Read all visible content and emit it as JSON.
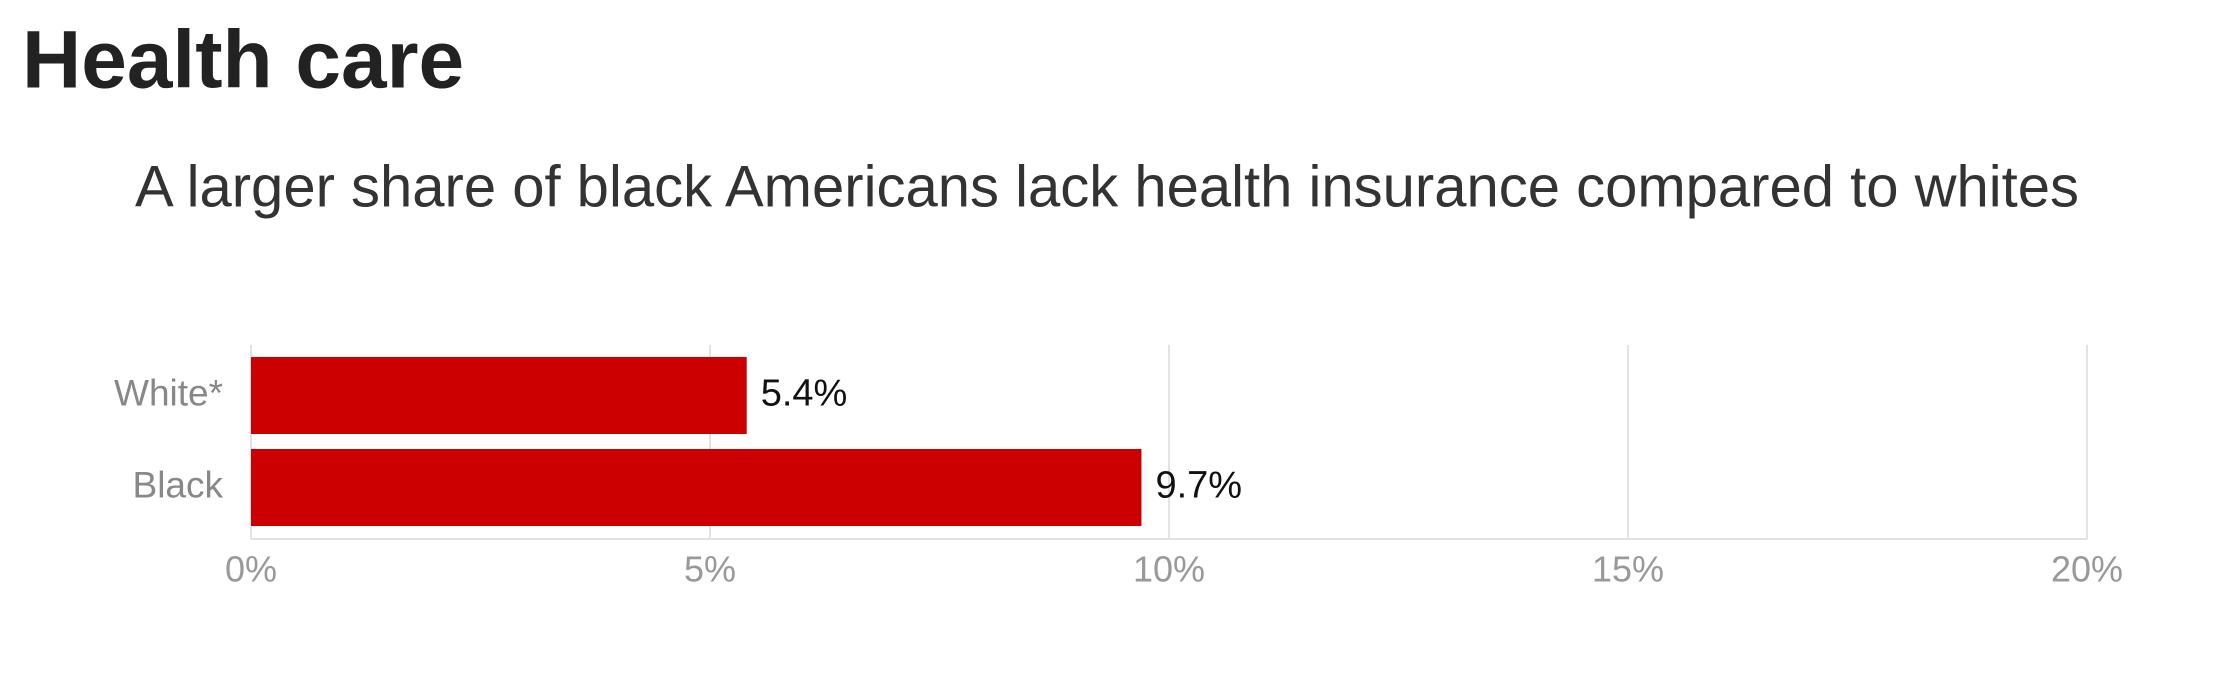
{
  "header": {
    "title": "Health care"
  },
  "chart_data": {
    "type": "bar",
    "orientation": "horizontal",
    "title": "A larger share of black Americans lack health insurance compared to whites",
    "categories": [
      "White*",
      "Black"
    ],
    "values": [
      5.4,
      9.7
    ],
    "value_labels": [
      "5.4%",
      "9.7%"
    ],
    "color": "#cc0000",
    "xlim": [
      0,
      20
    ],
    "xticks": [
      {
        "value": 0,
        "label": "0%"
      },
      {
        "value": 5,
        "label": "5%"
      },
      {
        "value": 10,
        "label": "10%"
      },
      {
        "value": 15,
        "label": "15%"
      },
      {
        "value": 20,
        "label": "20%"
      }
    ],
    "grid": true
  }
}
